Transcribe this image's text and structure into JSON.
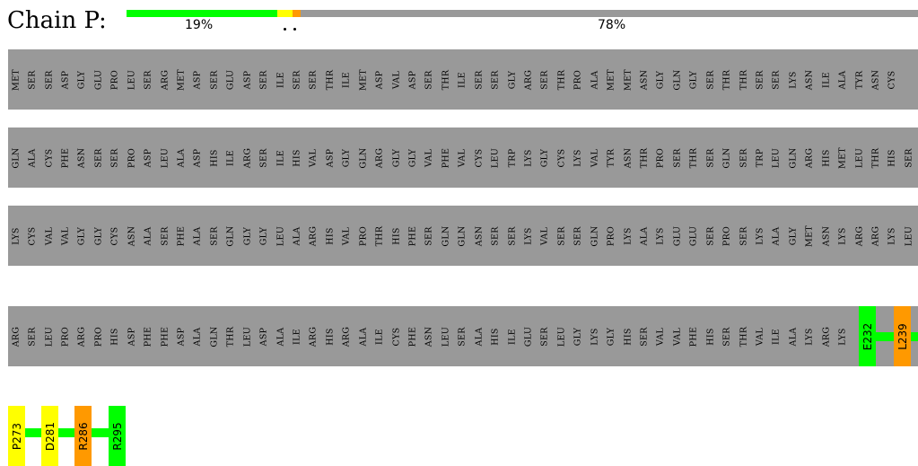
{
  "chain_label": "Chain P:",
  "quality_bar": {
    "segments": [
      {
        "color": "#00ff00",
        "fraction": 0.19
      },
      {
        "color": "#ffff00",
        "fraction": 0.02
      },
      {
        "color": "#ff9900",
        "fraction": 0.01
      },
      {
        "color": "#999999",
        "fraction": 0.78
      }
    ],
    "labels": {
      "green_pct": "19%",
      "gray_pct": "78%"
    }
  },
  "rows": [
    {
      "residues": [
        "MET",
        "SER",
        "SER",
        "ASP",
        "GLY",
        "GLU",
        "PRO",
        "LEU",
        "SER",
        "ARG",
        "MET",
        "ASP",
        "SER",
        "GLU",
        "ASP",
        "SER",
        "ILE",
        "SER",
        "SER",
        "THR",
        "ILE",
        "MET",
        "ASP",
        "VAL",
        "ASP",
        "SER",
        "THR",
        "ILE",
        "SER",
        "SER",
        "GLY",
        "ARG",
        "SER",
        "THR",
        "PRO",
        "ALA",
        "MET",
        "MET",
        "ASN",
        "GLY",
        "GLN",
        "GLY",
        "SER",
        "THR",
        "THR",
        "SER",
        "SER",
        "LYS",
        "ASN",
        "ILE",
        "ALA",
        "TYR",
        "ASN",
        "CYS"
      ]
    },
    {
      "residues": [
        "GLN",
        "ALA",
        "CYS",
        "PHE",
        "ASN",
        "SER",
        "SER",
        "PRO",
        "ASP",
        "LEU",
        "ALA",
        "ASP",
        "HIS",
        "ILE",
        "ARG",
        "SER",
        "ILE",
        "HIS",
        "VAL",
        "ASP",
        "GLY",
        "GLN",
        "ARG",
        "GLY",
        "GLY",
        "VAL",
        "PHE",
        "VAL",
        "CYS",
        "LEU",
        "TRP",
        "LYS",
        "GLY",
        "CYS",
        "LYS",
        "VAL",
        "TYR",
        "ASN",
        "THR",
        "PRO",
        "SER",
        "THR",
        "SER",
        "GLN",
        "SER",
        "TRP",
        "LEU",
        "GLN",
        "ARG",
        "HIS",
        "MET",
        "LEU",
        "THR",
        "HIS",
        "SER"
      ]
    },
    {
      "residues": [
        "LYS",
        "CYS",
        "VAL",
        "VAL",
        "GLY",
        "GLY",
        "CYS",
        "ASN",
        "ALA",
        "SER",
        "PHE",
        "ALA",
        "SER",
        "GLN",
        "GLY",
        "GLY",
        "LEU",
        "ALA",
        "ARG",
        "HIS",
        "VAL",
        "PRO",
        "THR",
        "HIS",
        "PHE",
        "SER",
        "GLN",
        "GLN",
        "ASN",
        "SER",
        "SER",
        "LYS",
        "VAL",
        "SER",
        "SER",
        "GLN",
        "PRO",
        "LYS",
        "ALA",
        "LYS",
        "GLU",
        "GLU",
        "SER",
        "PRO",
        "SER",
        "LYS",
        "ALA",
        "GLY",
        "MET",
        "ASN",
        "LYS",
        "ARG",
        "ARG",
        "LYS",
        "LEU"
      ]
    },
    {
      "residues": [
        "ARG",
        "SER",
        "LEU",
        "PRO",
        "ARG",
        "PRO",
        "HIS",
        "ASP",
        "PHE",
        "PHE",
        "ASP",
        "ALA",
        "GLN",
        "THR",
        "LEU",
        "ASP",
        "ALA",
        "ILE",
        "ARG",
        "HIS",
        "ARG",
        "ALA",
        "ILE",
        "CYS",
        "PHE",
        "ASN",
        "LEU",
        "SER",
        "ALA",
        "HIS",
        "ILE",
        "GLU",
        "SER",
        "LEU",
        "GLY",
        "LYS",
        "GLY",
        "HIS",
        "SER",
        "VAL",
        "VAL",
        "PHE",
        "HIS",
        "SER",
        "THR",
        "VAL",
        "ILE",
        "ALA",
        "LYS",
        "ARG",
        "LYS"
      ]
    }
  ],
  "highlights": [
    {
      "label": "E232",
      "color": "#00ff00"
    },
    {
      "label": "L239",
      "color": "#ff9900"
    },
    {
      "label": "P273",
      "color": "#ffff00"
    },
    {
      "label": "D281",
      "color": "#ffff00"
    },
    {
      "label": "R286",
      "color": "#ff9900"
    },
    {
      "label": "R295",
      "color": "#00ff00"
    }
  ],
  "colors": {
    "residue_band": "#999999",
    "connector": "#00ff00"
  }
}
